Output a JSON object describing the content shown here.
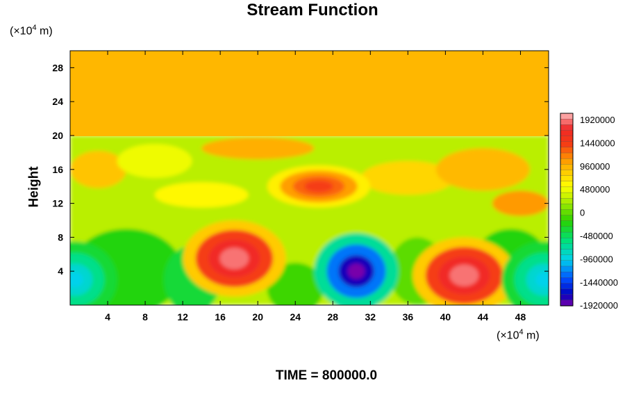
{
  "chart_data": {
    "type": "heatmap",
    "title": "Stream Function",
    "ylabel": "Height",
    "xunit_prefix": "(×10",
    "xunit_exp": "4",
    "xunit_suffix": " m)",
    "yunit_prefix": "(×10",
    "yunit_exp": "4",
    "yunit_suffix": " m)",
    "xlim": [
      0,
      51
    ],
    "ylim": [
      0,
      30
    ],
    "xticks": [
      4,
      8,
      12,
      16,
      20,
      24,
      28,
      32,
      36,
      40,
      44,
      48
    ],
    "yticks": [
      4,
      8,
      12,
      16,
      20,
      24,
      28
    ],
    "colorbar": {
      "min": -1920000,
      "max": 2080000,
      "labels": [
        "1920000",
        "1440000",
        "960000",
        "480000",
        "0",
        "-480000",
        "-960000",
        "-1440000",
        "-1920000"
      ],
      "label_values": [
        1920000,
        1440000,
        960000,
        480000,
        0,
        -480000,
        -960000,
        -1440000,
        -1920000
      ]
    },
    "features": [
      {
        "kind": "max",
        "x": 17.5,
        "y": 5.5,
        "value": 1920000
      },
      {
        "kind": "max",
        "x": 42,
        "y": 3.5,
        "value": 1920000
      },
      {
        "kind": "min",
        "x": 30.5,
        "y": 4,
        "value": -1920000
      },
      {
        "kind": "min",
        "x": 0.5,
        "y": 3,
        "value": -960000
      },
      {
        "kind": "min",
        "x": 50.5,
        "y": 3,
        "value": -960000
      },
      {
        "kind": "max",
        "x": 26.5,
        "y": 14,
        "value": 1440000
      }
    ],
    "upper_value": 960000,
    "upper_from_y": 20,
    "grid": false,
    "legend": "right"
  },
  "footer": {
    "time_label": "TIME = 800000.0"
  }
}
